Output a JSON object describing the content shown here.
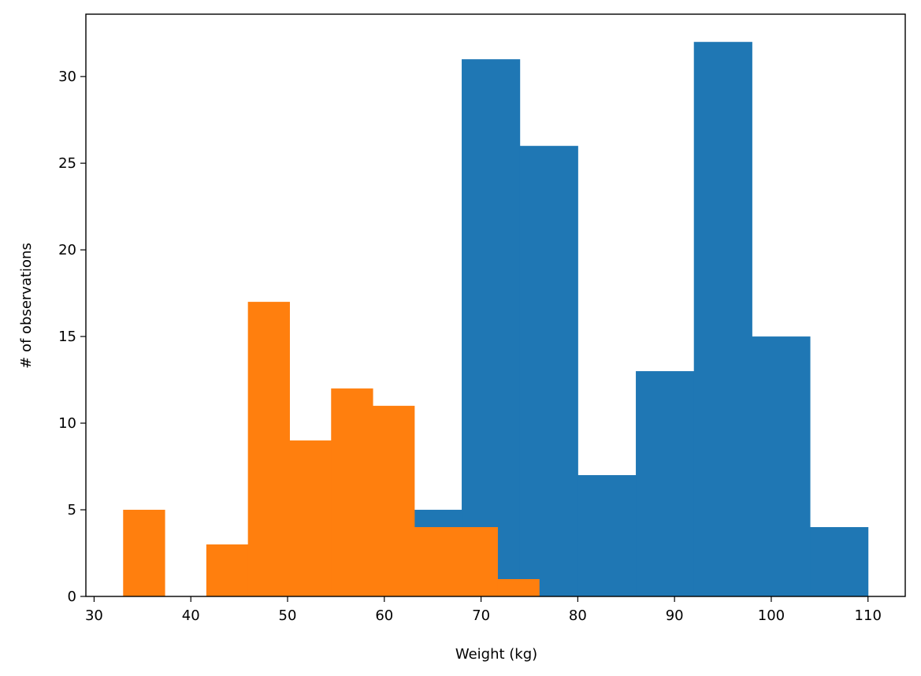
{
  "chart_data": {
    "type": "bar",
    "title": "",
    "xlabel": "Weight (kg)",
    "ylabel": "# of observations",
    "xlim": [
      29.15,
      113.85
    ],
    "ylim": [
      0,
      33.6
    ],
    "grid": false,
    "legend": "none",
    "xticks": [
      30,
      40,
      50,
      60,
      70,
      80,
      90,
      100,
      110
    ],
    "yticks": [
      0,
      5,
      10,
      15,
      20,
      25,
      30
    ],
    "series": [
      {
        "color": "#1f77b4",
        "bin_edges": [
          50,
          56,
          62,
          68,
          74,
          80,
          86,
          92,
          98,
          104,
          110
        ],
        "values": [
          2,
          2,
          5,
          31,
          26,
          7,
          13,
          32,
          15,
          4
        ]
      },
      {
        "color": "#ff7f0e",
        "bin_edges": [
          33,
          37.3,
          41.6,
          45.9,
          50.2,
          54.5,
          58.8,
          63.1,
          67.4,
          71.7,
          76
        ],
        "values": [
          5,
          0,
          3,
          17,
          9,
          12,
          11,
          4,
          4,
          1
        ]
      }
    ]
  }
}
